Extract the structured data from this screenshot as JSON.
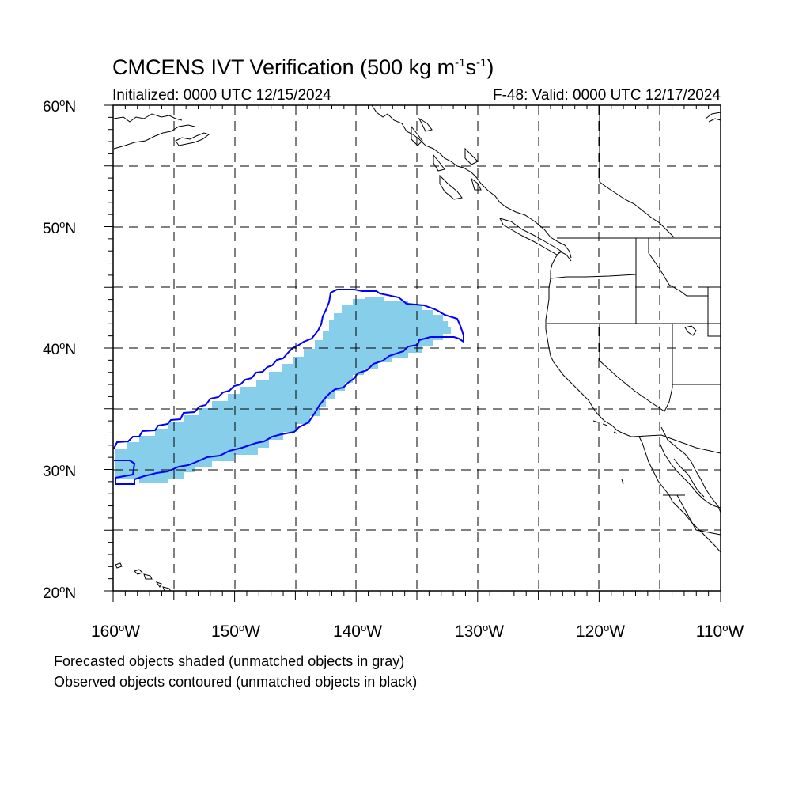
{
  "title": {
    "main": "CMCENS IVT Verification (500 kg m",
    "sup1": "-1",
    "mid": "s",
    "sup2": "-1",
    "end": ")"
  },
  "subtitle_left": "Initialized: 0000 UTC 12/15/2024",
  "subtitle_right": "F-48: Valid: 0000 UTC 12/17/2024",
  "axes": {
    "lat_labels": [
      {
        "num": "60",
        "hemi": "N"
      },
      {
        "num": "50",
        "hemi": "N"
      },
      {
        "num": "40",
        "hemi": "N"
      },
      {
        "num": "30",
        "hemi": "N"
      },
      {
        "num": "20",
        "hemi": "N"
      }
    ],
    "lon_labels": [
      {
        "num": "160",
        "hemi": "W"
      },
      {
        "num": "150",
        "hemi": "W"
      },
      {
        "num": "140",
        "hemi": "W"
      },
      {
        "num": "130",
        "hemi": "W"
      },
      {
        "num": "120",
        "hemi": "W"
      },
      {
        "num": "110",
        "hemi": "W"
      }
    ],
    "degree_symbol": "o"
  },
  "map_extent": {
    "lon": [
      -160,
      -110
    ],
    "lat": [
      20,
      60
    ]
  },
  "objects": {
    "forecast_fill_color": "#87CEEB",
    "observed_contour_color": "#0000FF"
  },
  "footnotes": [
    "Forecasted objects shaded (unmatched objects in gray)",
    "Observed objects contoured (unmatched objects in black)"
  ]
}
